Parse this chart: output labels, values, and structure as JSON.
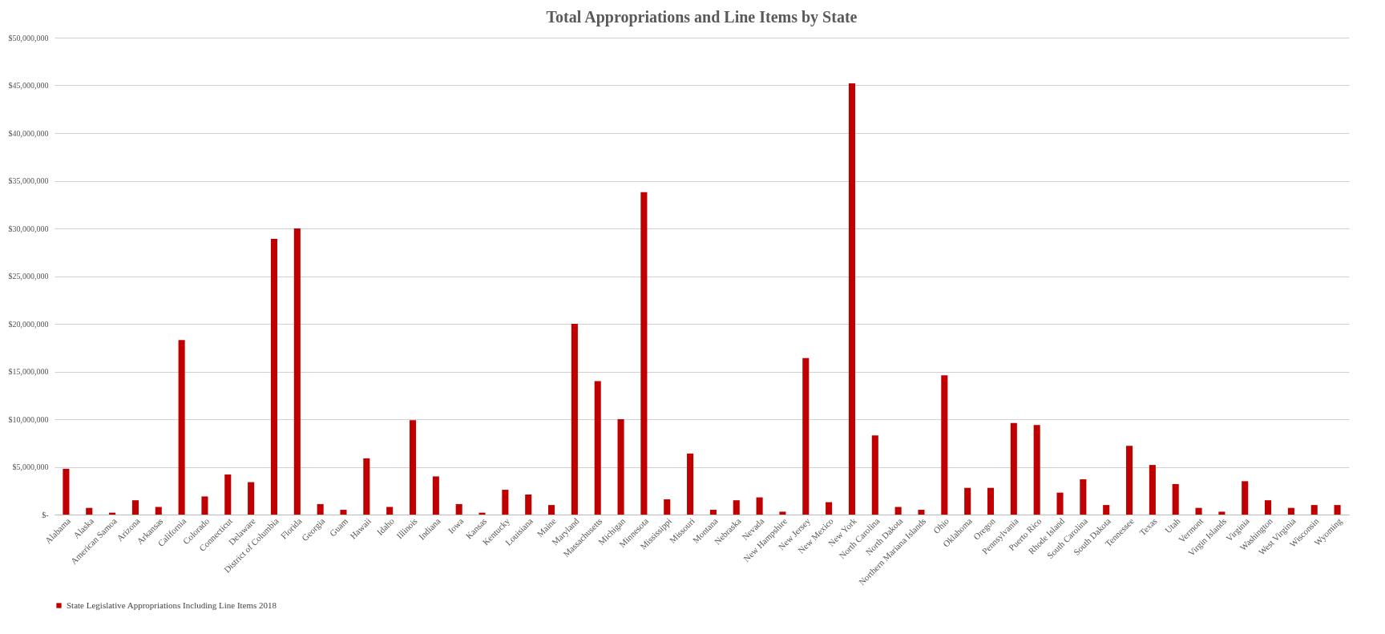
{
  "chart_data": {
    "type": "bar",
    "title": "Total Appropriations and Line Items by State",
    "categories": [
      "Alabama",
      "Alaska",
      "American Samoa",
      "Arizona",
      "Arkansas",
      "California",
      "Colorado",
      "Connecticut",
      "Delaware",
      "District of Columbia",
      "Florida",
      "Georgia",
      "Guam",
      "Hawaii",
      "Idaho",
      "Illinois",
      "Indiana",
      "Iowa",
      "Kansas",
      "Kentucky",
      "Louisiana",
      "Maine",
      "Maryland",
      "Massachusetts",
      "Michigan",
      "Minnesota",
      "Mississippi",
      "Missouri",
      "Montana",
      "Nebraska",
      "Nevada",
      "New Hampshire",
      "New Jersey",
      "New Mexico",
      "New York",
      "North Carolina",
      "North Dakota",
      "Northern Mariana Islands",
      "Ohio",
      "Oklahoma",
      "Oregon",
      "Pennsylvania",
      "Puerto Rico",
      "Rhode Island",
      "South Carolina",
      "South Dakota",
      "Tennessee",
      "Texas",
      "Utah",
      "Vermont",
      "Virgin Islands",
      "Virginia",
      "Washington",
      "West Virginia",
      "Wisconsin",
      "Wyoming"
    ],
    "series": [
      {
        "name": "State Legislative Appropriations Including Line Items 2018",
        "color": "#c00000",
        "values": [
          4800000,
          700000,
          200000,
          1500000,
          800000,
          18300000,
          1900000,
          4200000,
          3400000,
          28900000,
          30000000,
          1100000,
          500000,
          5900000,
          800000,
          9900000,
          4000000,
          1100000,
          200000,
          2600000,
          2100000,
          1000000,
          20000000,
          14000000,
          10000000,
          33800000,
          1600000,
          6400000,
          500000,
          1500000,
          1800000,
          300000,
          16400000,
          1300000,
          45200000,
          8300000,
          800000,
          500000,
          14600000,
          2800000,
          2800000,
          9600000,
          9400000,
          2300000,
          3700000,
          1000000,
          7200000,
          5200000,
          3200000,
          700000,
          300000,
          3500000,
          1500000,
          700000,
          1000000,
          1000000
        ]
      }
    ],
    "ylim": [
      0,
      50000000
    ],
    "yticks": [
      {
        "value": 0,
        "label": "$-"
      },
      {
        "value": 5000000,
        "label": "$5,000,000"
      },
      {
        "value": 10000000,
        "label": "$10,000,000"
      },
      {
        "value": 15000000,
        "label": "$15,000,000"
      },
      {
        "value": 20000000,
        "label": "$20,000,000"
      },
      {
        "value": 25000000,
        "label": "$25,000,000"
      },
      {
        "value": 30000000,
        "label": "$30,000,000"
      },
      {
        "value": 35000000,
        "label": "$35,000,000"
      },
      {
        "value": 40000000,
        "label": "$40,000,000"
      },
      {
        "value": 45000000,
        "label": "$45,000,000"
      },
      {
        "value": 50000000,
        "label": "$50,000,000"
      }
    ],
    "grid": "y",
    "legend": "bottom"
  }
}
